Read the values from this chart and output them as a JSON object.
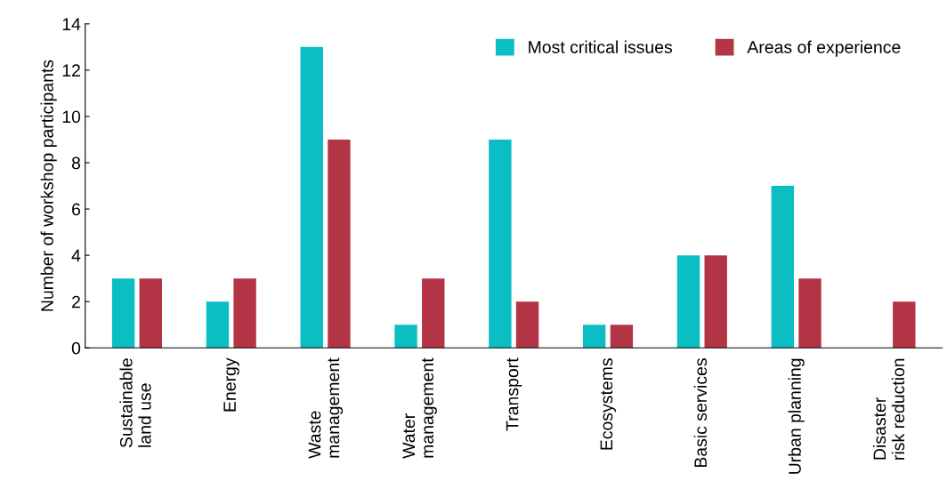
{
  "chart_data": {
    "type": "bar",
    "ylabel": "Number of workshop participants",
    "categories": [
      "Sustainable\nland use",
      "Energy",
      "Waste\nmanagement",
      "Water\nmanagement",
      "Transport",
      "Ecosystems",
      "Basic services",
      "Urban planning",
      "Disaster\nrisk reduction"
    ],
    "series": [
      {
        "name": "Most critical issues",
        "color": "#0bbec4",
        "values": [
          3,
          2,
          13,
          1,
          9,
          1,
          4,
          7,
          0
        ]
      },
      {
        "name": "Areas of experience",
        "color": "#b33545",
        "values": [
          3,
          3,
          9,
          3,
          2,
          1,
          4,
          3,
          2
        ]
      }
    ],
    "ylim": [
      0,
      14
    ],
    "yticks": [
      0,
      2,
      4,
      6,
      8,
      10,
      12,
      14
    ],
    "grid": false,
    "legend": "top right"
  }
}
